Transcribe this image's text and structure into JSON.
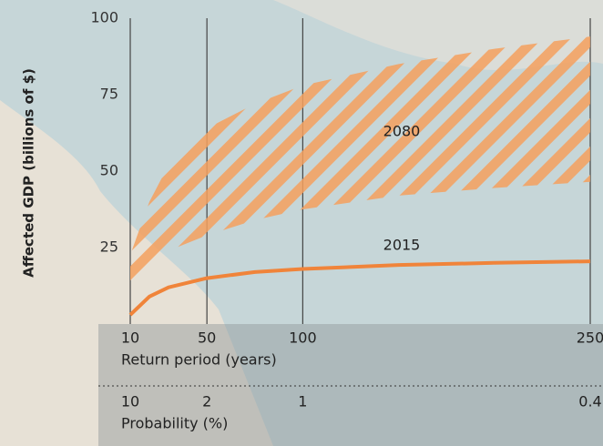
{
  "chart_data": {
    "type": "line",
    "ylabel": "Affected GDP (billions of $)",
    "xlabel": "Return period (years)",
    "x2label": "Probability (%)",
    "x": [
      10,
      20,
      30,
      50,
      75,
      100,
      150,
      200,
      250
    ],
    "series": [
      {
        "name": "2015",
        "color": "#f0843a",
        "values": [
          3,
          9,
          12,
          15,
          17,
          18,
          19.3,
          20,
          20.5
        ]
      },
      {
        "name": "2080",
        "color": "#f5a05e",
        "lower": [
          13.7,
          20,
          24,
          29,
          34,
          37.5,
          42,
          44.5,
          46.5
        ],
        "upper": [
          22.6,
          40,
          52,
          64,
          72,
          78,
          85,
          90,
          94
        ]
      }
    ],
    "xlim": [
      10,
      250
    ],
    "xticks": [
      10,
      50,
      100,
      250
    ],
    "x2ticks": [
      10,
      2,
      1,
      0.4
    ],
    "ylim": [
      0,
      100
    ],
    "yticks": [
      25,
      50,
      75,
      100
    ],
    "grid": true
  }
}
